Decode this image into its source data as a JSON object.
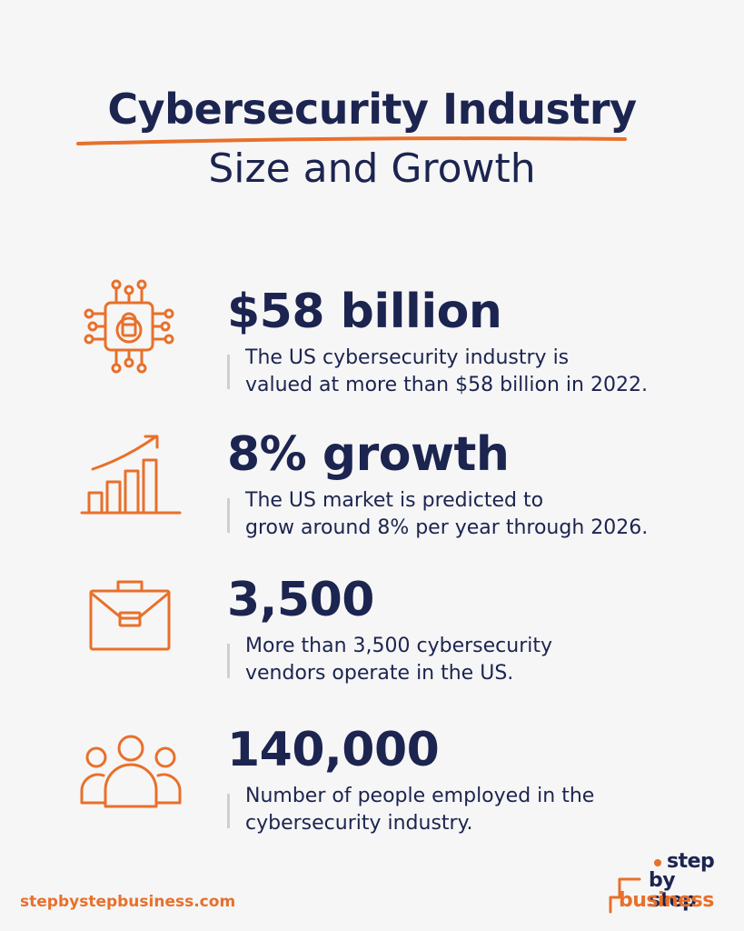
{
  "header": {
    "title": "Cybersecurity Industry",
    "subtitle": "Size and Growth"
  },
  "stats": [
    {
      "icon": "network-lock-icon",
      "value": "$58 billion",
      "desc_line1": "The US cybersecurity industry is",
      "desc_line2": "valued at more than $58 billion in 2022."
    },
    {
      "icon": "growth-chart-icon",
      "value": "8% growth",
      "desc_line1": "The US market is predicted to",
      "desc_line2": "grow around 8% per year through 2026."
    },
    {
      "icon": "briefcase-icon",
      "value": "3,500",
      "desc_line1": "More than 3,500 cybersecurity",
      "desc_line2": "vendors operate in the US."
    },
    {
      "icon": "people-group-icon",
      "value": "140,000",
      "desc_line1": "Number of people employed in the",
      "desc_line2": "cybersecurity industry."
    }
  ],
  "footer": {
    "url": "stepbystepbusiness.com",
    "logo_line1": "step",
    "logo_line2": "by step",
    "logo_line3": "business"
  },
  "colors": {
    "accent": "#e8702a",
    "text": "#1c2450",
    "background": "#f6f6f6"
  }
}
